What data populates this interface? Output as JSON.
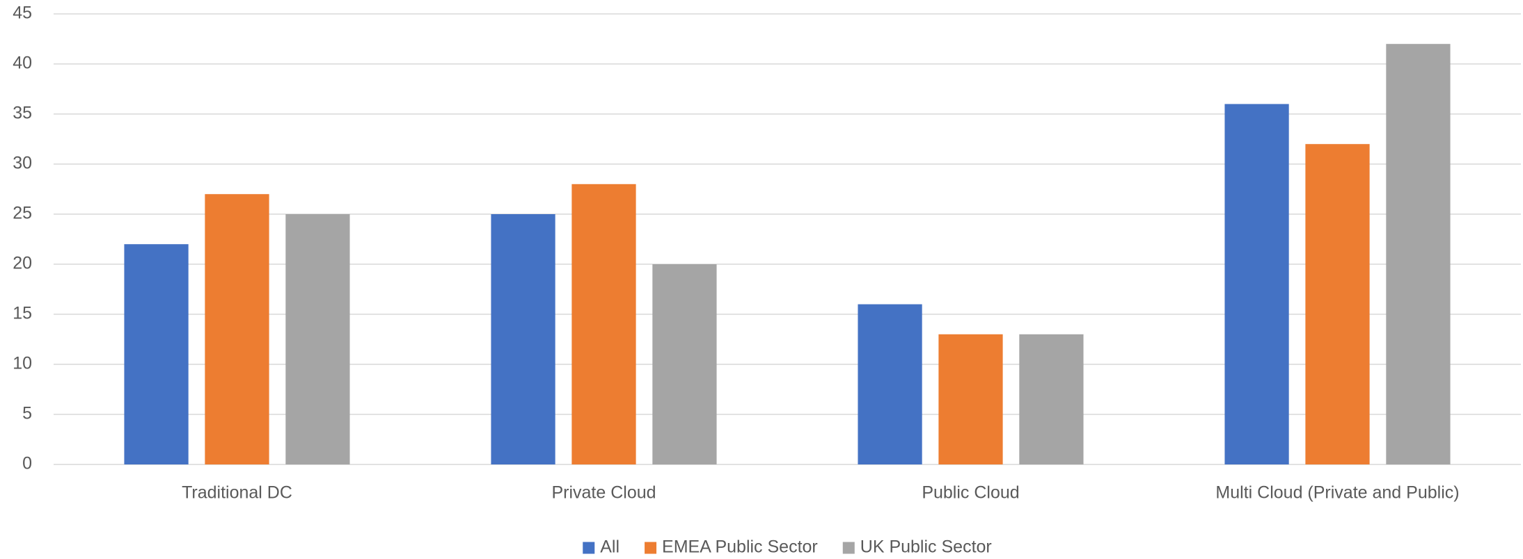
{
  "chart_data": {
    "type": "bar",
    "categories": [
      "Traditional DC",
      "Private Cloud",
      "Public Cloud",
      "Multi Cloud (Private and Public)"
    ],
    "series": [
      {
        "name": "All",
        "color": "#4472c4",
        "values": [
          22,
          25,
          16,
          36
        ]
      },
      {
        "name": "EMEA Public Sector",
        "color": "#ed7d31",
        "values": [
          27,
          28,
          13,
          32
        ]
      },
      {
        "name": "UK Public Sector",
        "color": "#a5a5a5",
        "values": [
          25,
          20,
          13,
          42
        ]
      }
    ],
    "ylim": [
      0,
      45
    ],
    "yticks": [
      0,
      5,
      10,
      15,
      20,
      25,
      30,
      35,
      40,
      45
    ],
    "grid": true,
    "legend": "bottom"
  }
}
